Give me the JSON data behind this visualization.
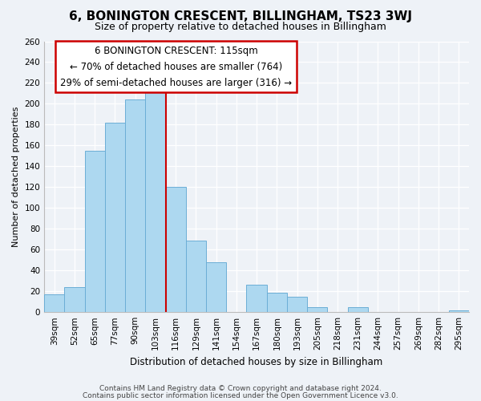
{
  "title": "6, BONINGTON CRESCENT, BILLINGHAM, TS23 3WJ",
  "subtitle": "Size of property relative to detached houses in Billingham",
  "xlabel": "Distribution of detached houses by size in Billingham",
  "ylabel": "Number of detached properties",
  "footer_line1": "Contains HM Land Registry data © Crown copyright and database right 2024.",
  "footer_line2": "Contains public sector information licensed under the Open Government Licence v3.0.",
  "annotation_line1": "6 BONINGTON CRESCENT: 115sqm",
  "annotation_line2": "← 70% of detached houses are smaller (764)",
  "annotation_line3": "29% of semi-detached houses are larger (316) →",
  "bar_labels": [
    "39sqm",
    "52sqm",
    "65sqm",
    "77sqm",
    "90sqm",
    "103sqm",
    "116sqm",
    "129sqm",
    "141sqm",
    "154sqm",
    "167sqm",
    "180sqm",
    "193sqm",
    "205sqm",
    "218sqm",
    "231sqm",
    "244sqm",
    "257sqm",
    "269sqm",
    "282sqm",
    "295sqm"
  ],
  "bar_values": [
    17,
    24,
    155,
    182,
    204,
    211,
    120,
    69,
    48,
    0,
    26,
    19,
    15,
    5,
    0,
    5,
    0,
    0,
    0,
    0,
    2
  ],
  "bar_color": "#add8f0",
  "bar_edge_color": "#6baed6",
  "vline_index": 6,
  "vline_color": "#cc0000",
  "ylim": [
    0,
    260
  ],
  "yticks": [
    0,
    20,
    40,
    60,
    80,
    100,
    120,
    140,
    160,
    180,
    200,
    220,
    240,
    260
  ],
  "annotation_box_facecolor": "#ffffff",
  "annotation_box_edgecolor": "#cc0000",
  "background_color": "#eef2f7",
  "grid_color": "#ffffff",
  "title_fontsize": 11,
  "subtitle_fontsize": 9,
  "ylabel_fontsize": 8,
  "xlabel_fontsize": 8.5,
  "annot_fontsize": 8.5,
  "footer_fontsize": 6.5,
  "tick_fontsize": 7.5
}
